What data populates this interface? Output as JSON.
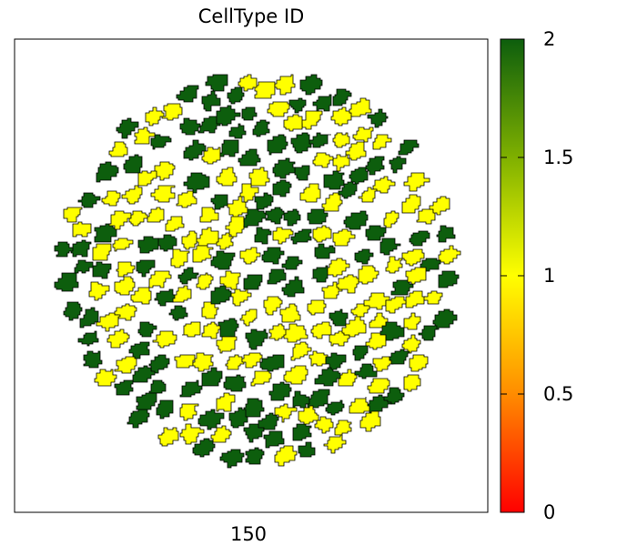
{
  "chart_data": {
    "type": "heatmap",
    "title": "CellType ID",
    "xlabel": "150",
    "ylabel": "",
    "colorbar": {
      "range": [
        0,
        2
      ],
      "ticks": [
        "0",
        "0.5",
        "1",
        "1.5",
        "2"
      ],
      "colors": [
        "#ff0000",
        "#ff8c00",
        "#ffff00",
        "#7fb000",
        "#0d5e0d"
      ]
    },
    "cell_types": [
      {
        "id": 1,
        "color": "#ffff00"
      },
      {
        "id": 2,
        "color": "#0d5e0d"
      }
    ],
    "grid": false
  }
}
